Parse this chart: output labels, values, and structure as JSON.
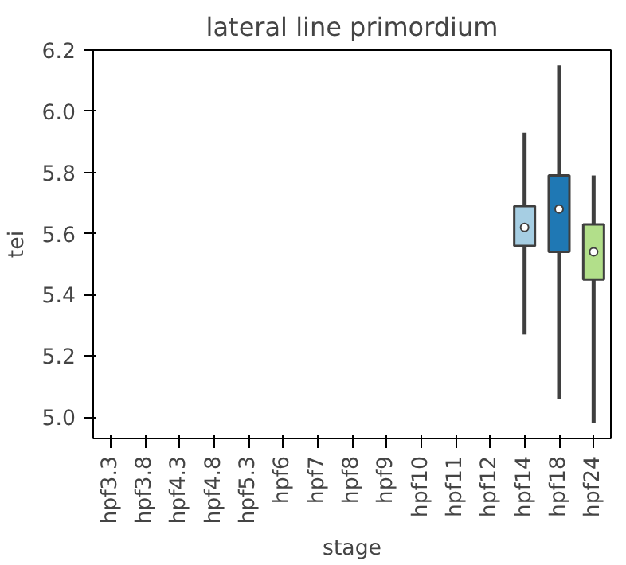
{
  "chart_data": {
    "type": "box",
    "title": "lateral line primordium",
    "xlabel": "stage",
    "ylabel": "tei",
    "categories": [
      "hpf3.3",
      "hpf3.8",
      "hpf4.3",
      "hpf4.8",
      "hpf5.3",
      "hpf6",
      "hpf7",
      "hpf8",
      "hpf9",
      "hpf10",
      "hpf11",
      "hpf12",
      "hpf14",
      "hpf18",
      "hpf24"
    ],
    "boxes": [
      null,
      null,
      null,
      null,
      null,
      null,
      null,
      null,
      null,
      null,
      null,
      null,
      {
        "low": 5.27,
        "q1": 5.56,
        "median": 5.62,
        "q3": 5.69,
        "high": 5.93
      },
      {
        "low": 5.06,
        "q1": 5.54,
        "median": 5.68,
        "q3": 5.79,
        "high": 6.15
      },
      {
        "low": 4.98,
        "q1": 5.45,
        "median": 5.54,
        "q3": 5.63,
        "high": 5.79
      }
    ],
    "colors": [
      "#a6cee3",
      "#1f78b4",
      "#b2df8a",
      "#33a02c",
      "#fb9a99",
      "#e31a1c",
      "#fdbf6f",
      "#ff7f00",
      "#cab2d6",
      "#6a3d9a",
      "#ffff99",
      "#b15928",
      "#a6cee3",
      "#1f78b4",
      "#b2df8a"
    ],
    "ylim": [
      4.93,
      6.2
    ],
    "yticks": [
      {
        "value": 5.0,
        "label": "5.0"
      },
      {
        "value": 5.2,
        "label": "5.2"
      },
      {
        "value": 5.4,
        "label": "5.4"
      },
      {
        "value": 5.6,
        "label": "5.6"
      },
      {
        "value": 5.8,
        "label": "5.8"
      },
      {
        "value": 6.0,
        "label": "6.0"
      },
      {
        "value": 6.2,
        "label": "6.2"
      }
    ],
    "grid": false
  }
}
